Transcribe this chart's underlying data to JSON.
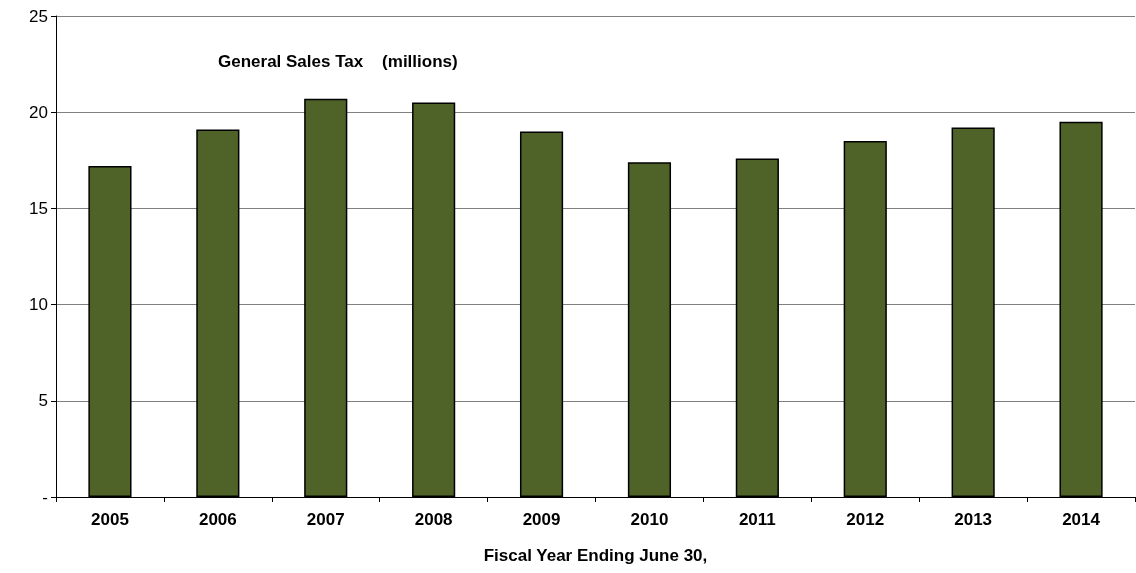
{
  "chart_data": {
    "type": "bar",
    "title": "General Sales Tax    (millions)",
    "xlabel": "Fiscal Year Ending June 30,",
    "categories": [
      "2005",
      "2006",
      "2007",
      "2008",
      "2009",
      "2010",
      "2011",
      "2012",
      "2013",
      "2014"
    ],
    "values": [
      17.2,
      19.1,
      20.7,
      20.5,
      19.0,
      17.4,
      17.6,
      18.5,
      19.2,
      19.5
    ],
    "color": "#4f6228",
    "ylim": [
      0,
      25
    ],
    "yticks": [
      {
        "value": 0,
        "label": "-"
      },
      5,
      10,
      15,
      20,
      25
    ],
    "grid": "y"
  }
}
